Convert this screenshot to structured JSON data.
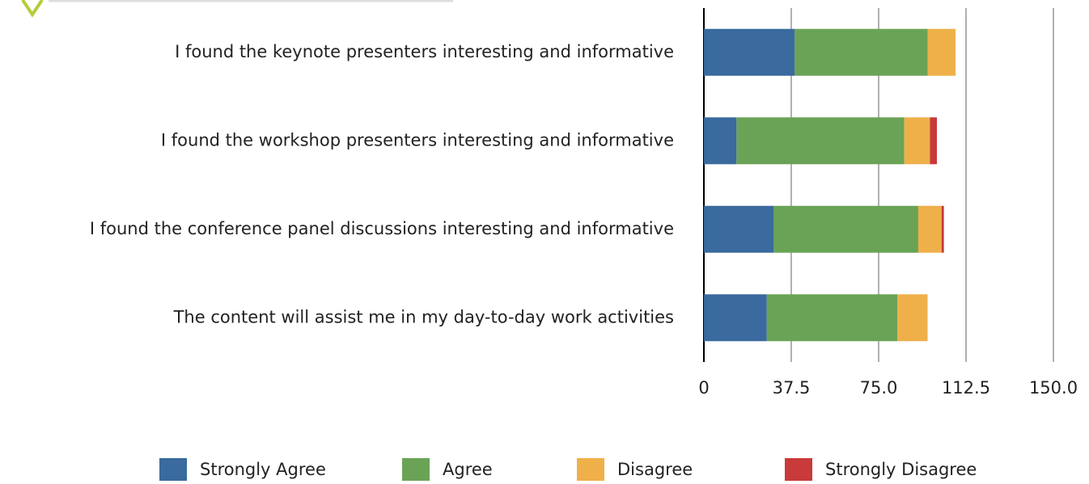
{
  "chart_data": {
    "type": "stacked-bar-horizontal",
    "categories": [
      "I found the keynote presenters interesting and informative",
      "I found the workshop presenters interesting and informative",
      "I found the conference panel discussions interesting and informative",
      "The content will assist me in my day-to-day work activities"
    ],
    "series": [
      {
        "name": "Strongly Agree",
        "color": "#3a6a9e",
        "values": [
          39,
          14,
          30,
          27
        ]
      },
      {
        "name": "Agree",
        "color": "#6aa356",
        "values": [
          57,
          72,
          62,
          56
        ]
      },
      {
        "name": "Disagree",
        "color": "#efb04a",
        "values": [
          12,
          11,
          10,
          13
        ]
      },
      {
        "name": "Strongly Disagree",
        "color": "#c93a3a",
        "values": [
          0,
          3,
          1,
          0
        ]
      }
    ],
    "xlim": [
      0,
      150
    ],
    "xticks": [
      0,
      37.5,
      {
        "value": 75,
        "label": "75.0"
      },
      112.5,
      {
        "value": 150,
        "label": "150.0"
      }
    ],
    "grid": true,
    "legend": "bottom"
  }
}
